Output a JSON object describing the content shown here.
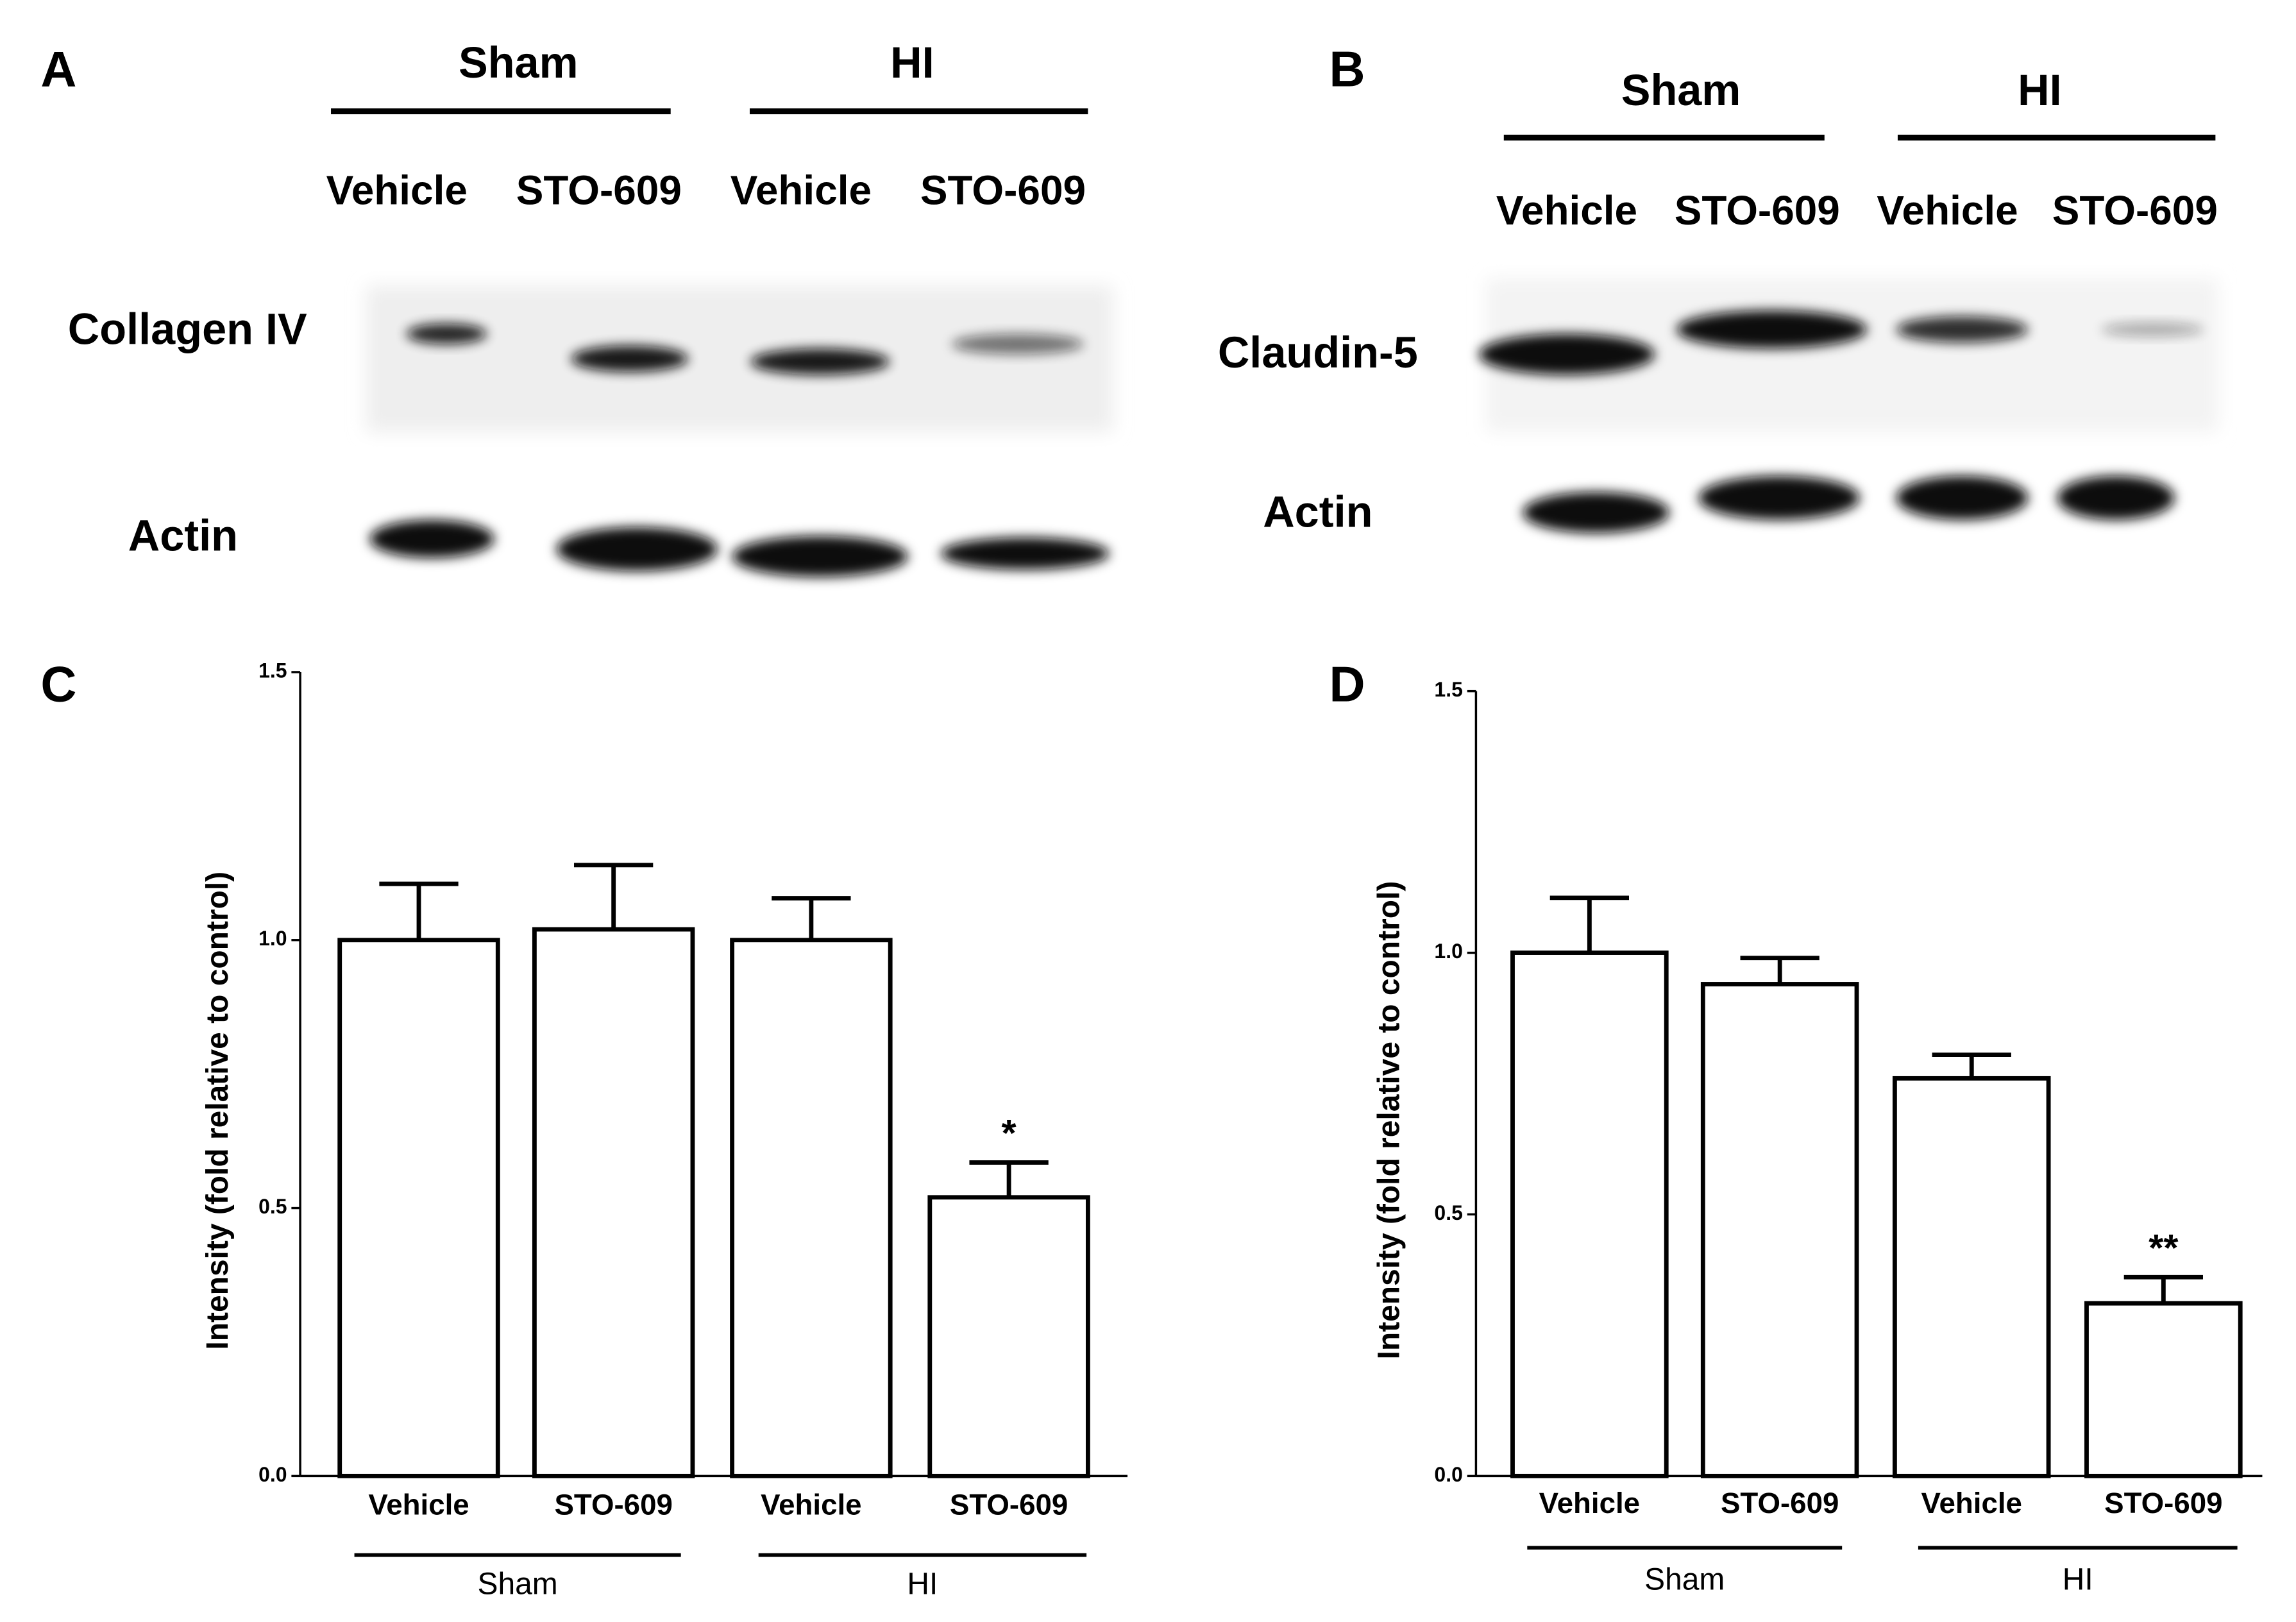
{
  "blots": [
    {
      "panel": "A",
      "groups": [
        "Sham",
        "HI"
      ],
      "lanes": [
        "Vehicle",
        "STO-609",
        "Vehicle",
        "STO-609"
      ],
      "rows": [
        "Collagen IV",
        "Actin"
      ]
    },
    {
      "panel": "B",
      "groups": [
        "Sham",
        "HI"
      ],
      "lanes": [
        "Vehicle",
        "STO-609",
        "Vehicle",
        "STO-609"
      ],
      "rows": [
        "Claudin-5",
        "Actin"
      ]
    }
  ],
  "chart_data": [
    {
      "type": "bar",
      "panel": "C",
      "ylabel": "Intensity (fold relative to control)",
      "categories": [
        "Vehicle",
        "STO-609",
        "Vehicle",
        "STO-609"
      ],
      "groups": [
        "Sham",
        "HI"
      ],
      "values": [
        1.0,
        1.02,
        1.0,
        0.52
      ],
      "errors": [
        0.105,
        0.12,
        0.078,
        0.065
      ],
      "annotation": "*",
      "color": "#ffffff",
      "edgecolor": "#000000",
      "ylim": [
        0,
        1.5
      ],
      "yticks": [
        {
          "value": 0,
          "label": "0.0"
        },
        {
          "value": 0.5,
          "label": "0.5"
        },
        {
          "value": 1,
          "label": "1.0"
        },
        {
          "value": 1.5,
          "label": "1.5"
        }
      ]
    },
    {
      "type": "bar",
      "panel": "D",
      "ylabel": "Intensity (fold relative to control)",
      "categories": [
        "Vehicle",
        "STO-609",
        "Vehicle",
        "STO-609"
      ],
      "groups": [
        "Sham",
        "HI"
      ],
      "values": [
        1.0,
        0.94,
        0.76,
        0.33
      ],
      "errors": [
        0.105,
        0.05,
        0.045,
        0.05
      ],
      "annotation": "**",
      "color": "#ffffff",
      "edgecolor": "#000000",
      "ylim": [
        0,
        1.5
      ],
      "yticks": [
        {
          "value": 0,
          "label": "0.0"
        },
        {
          "value": 0.5,
          "label": "0.5"
        },
        {
          "value": 1,
          "label": "1.0"
        },
        {
          "value": 1.5,
          "label": "1.5"
        }
      ]
    }
  ]
}
